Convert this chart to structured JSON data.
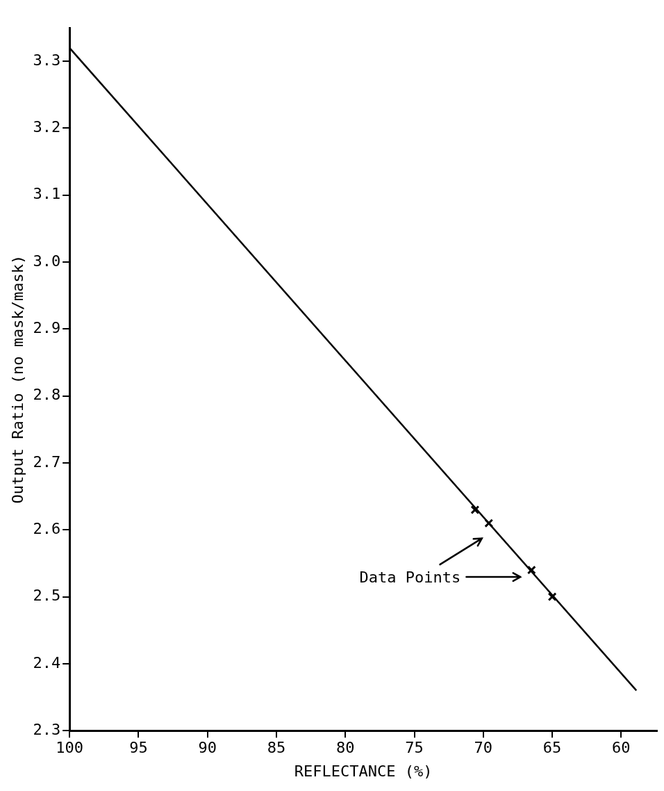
{
  "chart_data": {
    "type": "scatter",
    "xlabel": "REFLECTANCE (%)",
    "ylabel": "Output Ratio (no mask/mask)",
    "xlim": [
      100,
      57.4
    ],
    "xticks": [
      100,
      95,
      90,
      85,
      80,
      75,
      70,
      65,
      60
    ],
    "ylim": [
      2.3,
      3.35
    ],
    "yticks": [
      2.3,
      2.4,
      2.5,
      2.6,
      2.7,
      2.8,
      2.9,
      {
        "value": 3.0,
        "label": "3.0"
      },
      3.1,
      3.2,
      3.3
    ],
    "grid": false,
    "legend": false,
    "series": [
      {
        "type": "line",
        "color": "#000000",
        "marker": "none",
        "x": [
          100,
          58.9
        ],
        "values": [
          3.32,
          2.36
        ]
      },
      {
        "type": "scatter",
        "color": "#000000",
        "marker": "cross",
        "x": [
          70.6,
          69.6,
          66.5,
          65.0
        ],
        "values": [
          2.63,
          2.61,
          2.54,
          2.5
        ]
      }
    ],
    "annotations": [
      "Data Points"
    ]
  }
}
